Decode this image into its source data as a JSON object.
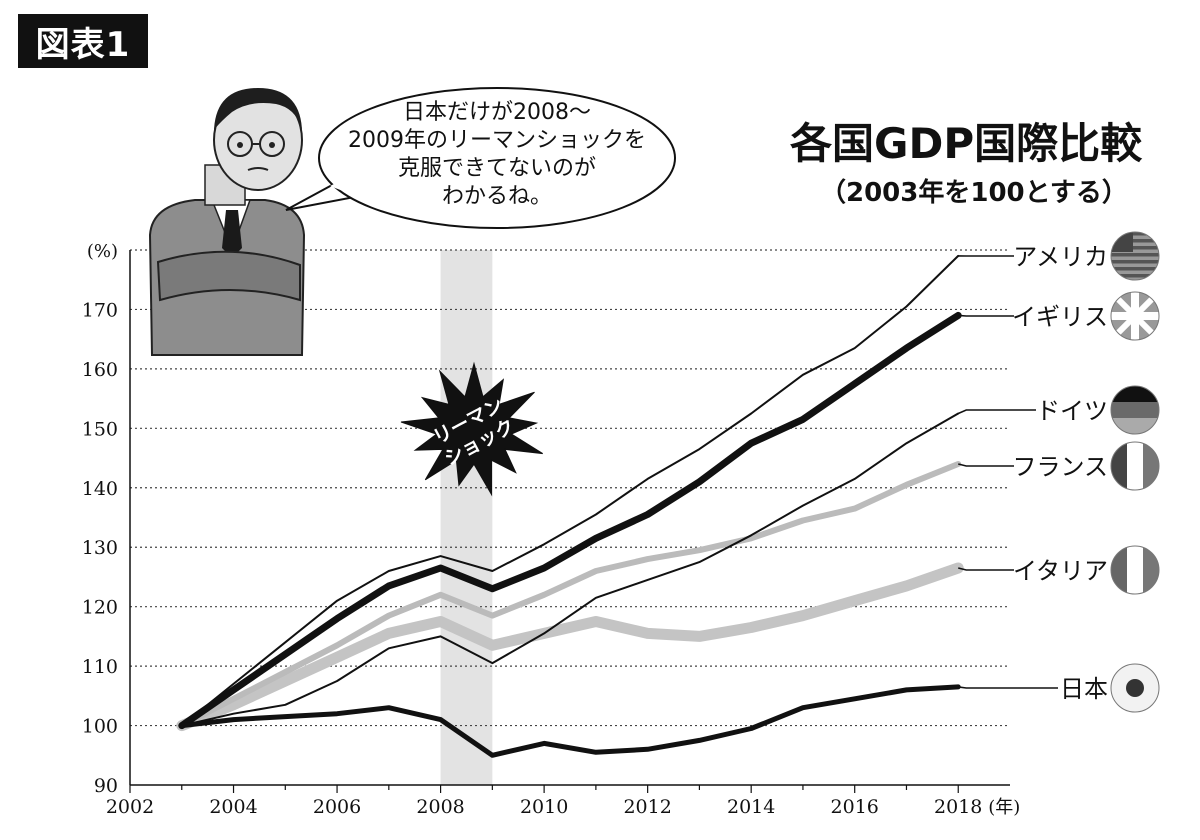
{
  "figure_label": "図表1",
  "speech_bubble": {
    "lines": [
      "日本だけが2008〜",
      "2009年のリーマンショックを",
      "克服できてないのが",
      "わかるね。"
    ]
  },
  "burst_label": {
    "lines": [
      "リーマン",
      "ショック"
    ]
  },
  "chart_data": {
    "type": "line",
    "title": "各国GDP国際比較",
    "subtitle": "（2003年を100とする）",
    "ylabel": "(%)",
    "xlabel": "(年)",
    "ylim": [
      90,
      180
    ],
    "xlim": [
      2002,
      2019
    ],
    "yticks": [
      90,
      100,
      110,
      120,
      130,
      140,
      150,
      160,
      170
    ],
    "xticks": [
      2002,
      2004,
      2006,
      2008,
      2010,
      2012,
      2014,
      2016,
      2018
    ],
    "grid": "horizontal dotted",
    "highlight_range": [
      2008,
      2009
    ],
    "x": [
      2003,
      2004,
      2005,
      2006,
      2007,
      2008,
      2009,
      2010,
      2011,
      2012,
      2013,
      2014,
      2015,
      2016,
      2017,
      2018
    ],
    "series": [
      {
        "name": "アメリカ",
        "color": "#111111",
        "width": 2,
        "values": [
          100,
          107,
          114,
          121,
          126,
          128.5,
          126,
          130.5,
          135.5,
          141.5,
          146.5,
          152.5,
          159,
          163.5,
          170.5,
          179
        ]
      },
      {
        "name": "イギリス",
        "color": "#111111",
        "width": 7,
        "values": [
          100,
          106,
          112,
          118,
          123.5,
          126.5,
          123,
          126.5,
          131.5,
          135.5,
          141,
          147.5,
          151.5,
          157.5,
          163.5,
          169
        ]
      },
      {
        "name": "ドイツ",
        "color": "#111111",
        "width": 2,
        "values": [
          100,
          102,
          103.5,
          107.5,
          113,
          115,
          110.5,
          115.5,
          121.5,
          124.5,
          127.5,
          132,
          137,
          141.5,
          147.5,
          152.5
        ]
      },
      {
        "name": "フランス",
        "color": "#bbbbbb",
        "width": 6,
        "values": [
          100,
          104.5,
          109,
          113.5,
          118.5,
          122,
          118.5,
          122,
          126,
          128,
          129.5,
          131.5,
          134.5,
          136.5,
          140.5,
          144
        ]
      },
      {
        "name": "イタリア",
        "color": "#c4c4c4",
        "width": 11,
        "values": [
          100,
          103.5,
          107.5,
          111.5,
          115.5,
          117.5,
          113.5,
          115.5,
          117.5,
          115.5,
          115,
          116.5,
          118.5,
          121,
          123.5,
          126.5
        ]
      },
      {
        "name": "日本",
        "color": "#111111",
        "width": 5,
        "values": [
          100,
          101,
          101.5,
          102,
          103,
          101,
          95,
          97,
          95.5,
          96,
          97.5,
          99.5,
          103,
          104.5,
          106,
          106.5
        ]
      }
    ],
    "legend_labels": [
      "アメリカ",
      "イギリス",
      "ドイツ",
      "フランス",
      "イタリア",
      "日本"
    ],
    "flags": [
      "usa-flag",
      "uk-flag",
      "germany-flag",
      "france-flag",
      "italy-flag",
      "japan-flag"
    ]
  }
}
